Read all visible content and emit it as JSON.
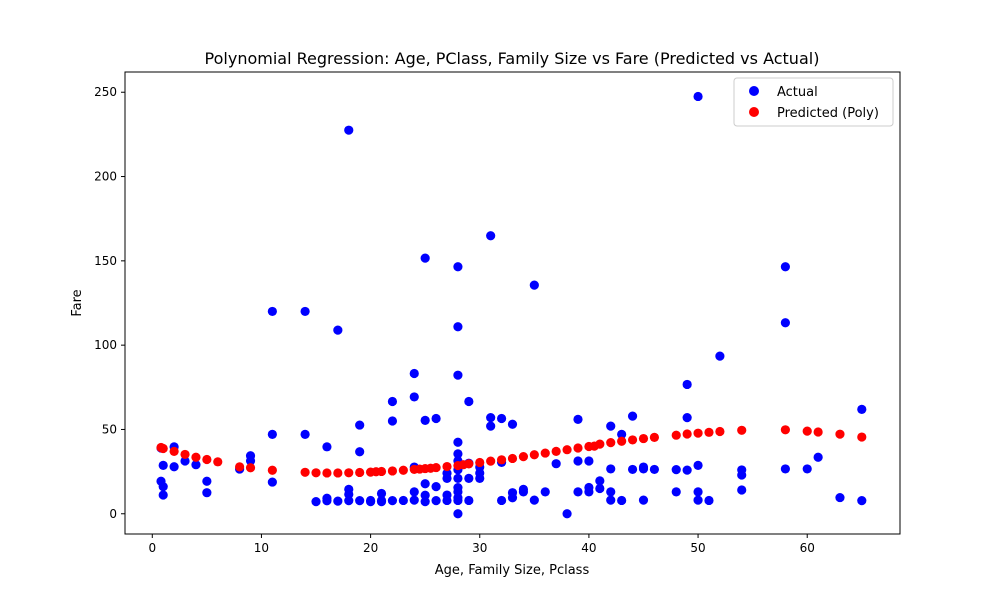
{
  "chart_data": {
    "type": "scatter",
    "title": "Polynomial Regression: Age, PClass, Family Size vs Fare (Predicted vs Actual)",
    "xlabel": "Age, Family Size, Pclass",
    "ylabel": "Fare",
    "xlim": [
      -2.5,
      68.5
    ],
    "ylim": [
      -12,
      262
    ],
    "xticks": [
      0,
      10,
      20,
      30,
      40,
      50,
      60
    ],
    "yticks": [
      0,
      50,
      100,
      150,
      200,
      250
    ],
    "grid": false,
    "legend_position": "top-right",
    "series": [
      {
        "name": "Actual",
        "color": "#0000ff",
        "x": [
          0.8,
          1,
          1,
          2,
          0.8,
          1,
          2,
          3,
          4,
          5,
          5,
          8,
          9,
          9,
          11,
          11,
          11,
          14,
          14,
          15,
          16,
          16,
          16,
          17,
          17,
          18,
          18,
          18,
          18,
          19,
          19,
          19,
          20,
          20,
          21,
          21,
          21,
          22,
          22,
          22,
          23,
          24,
          24,
          24,
          24,
          24,
          25,
          25,
          25,
          25,
          25,
          26,
          26,
          26,
          27,
          27,
          27,
          27,
          28,
          28,
          28,
          28,
          28,
          28,
          28,
          28,
          28,
          28,
          28,
          28,
          28,
          29,
          29,
          29,
          29,
          30,
          30,
          30,
          31,
          31,
          31,
          32,
          32,
          32,
          33,
          33,
          33,
          34,
          34,
          35,
          35,
          36,
          37,
          38,
          39,
          39,
          39,
          40,
          40,
          40,
          41,
          41,
          42,
          42,
          42,
          42,
          43,
          43,
          44,
          44,
          45,
          45,
          45,
          46,
          48,
          48,
          49,
          49,
          49,
          50,
          50,
          50,
          50,
          51,
          52,
          54,
          54,
          54,
          58,
          58,
          58,
          60,
          61,
          63,
          65,
          65
        ],
        "y": [
          19.3,
          28.7,
          16.1,
          39.7,
          39,
          11.1,
          27.9,
          31.3,
          29.1,
          19.3,
          12.5,
          26.5,
          34.4,
          31.4,
          120,
          47.1,
          18.8,
          120,
          47.1,
          7.2,
          39.7,
          9.2,
          7.7,
          108.9,
          7.5,
          227.5,
          14.5,
          7.8,
          11.5,
          52.6,
          36.8,
          7.8,
          7.2,
          7.9,
          12,
          7.9,
          7.2,
          66.6,
          55,
          7.8,
          7.9,
          83.2,
          69.3,
          13,
          8.1,
          27.7,
          151.6,
          55.4,
          17.8,
          7.2,
          11,
          56.5,
          16.1,
          7.8,
          21,
          24,
          11.1,
          7.9,
          146.5,
          110.9,
          82.2,
          42.4,
          35.5,
          31.4,
          26.1,
          21,
          15.5,
          13,
          9.5,
          7.9,
          0,
          66.6,
          30,
          21,
          7.9,
          27.7,
          24.2,
          21,
          164.9,
          57,
          52,
          56.5,
          30.5,
          7.9,
          53.1,
          12.5,
          9.5,
          13,
          14.5,
          135.6,
          8.1,
          13,
          29.7,
          0,
          56,
          31.3,
          13,
          31.3,
          15.6,
          13,
          19.5,
          15,
          52,
          26.6,
          13,
          8.1,
          47.1,
          7.9,
          57.9,
          26.3,
          26.6,
          27.7,
          8.1,
          26.3,
          26.2,
          13,
          76.7,
          57,
          25.9,
          247.5,
          28.7,
          13,
          8.1,
          7.9,
          93.5,
          26,
          23,
          14.1,
          146.5,
          113.3,
          26.6,
          26.6,
          33.5,
          9.6,
          61.9,
          7.8
        ]
      },
      {
        "name": "Predicted (Poly)",
        "color": "#ff0000",
        "x": [
          0.8,
          1,
          2,
          3,
          4,
          5,
          6,
          8,
          9,
          11,
          14,
          15,
          16,
          17,
          18,
          19,
          20,
          20.5,
          21,
          22,
          23,
          24,
          24.5,
          25,
          25.5,
          26,
          27,
          28,
          28.5,
          29,
          30,
          31,
          32,
          33,
          34,
          35,
          36,
          37,
          38,
          39,
          40,
          40.5,
          41,
          42,
          43,
          44,
          45,
          46,
          48,
          49,
          50,
          51,
          52,
          54,
          58,
          60,
          61,
          63,
          65
        ],
        "y": [
          39.3,
          38.7,
          37,
          35.2,
          33.5,
          32.2,
          30.8,
          27.8,
          27.3,
          25.8,
          24.6,
          24.3,
          24.2,
          24.2,
          24.3,
          24.5,
          24.7,
          24.9,
          25.1,
          25.4,
          25.8,
          26.3,
          26.5,
          26.8,
          27,
          27.4,
          28,
          28.6,
          29.1,
          29.6,
          30.4,
          31.2,
          32,
          32.8,
          33.9,
          35,
          36,
          37,
          38,
          39,
          39.9,
          40.1,
          41.3,
          42.2,
          43,
          43.8,
          44.6,
          45.3,
          46.6,
          47.3,
          47.8,
          48.3,
          48.8,
          49.5,
          49.8,
          49,
          48.5,
          47.2,
          45.5
        ]
      }
    ]
  }
}
